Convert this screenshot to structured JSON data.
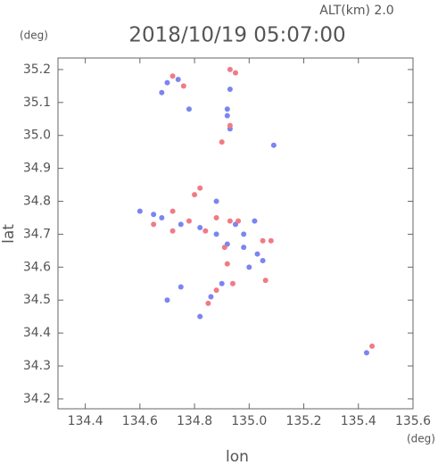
{
  "chart_data": {
    "type": "scatter",
    "title": "2018/10/19 05:07:00",
    "subtitle": "ALT(km) 2.0",
    "x_label": "lon",
    "y_label": "lat",
    "x_unit": "(deg)",
    "y_unit": "(deg)",
    "xlim": [
      134.3,
      135.6
    ],
    "ylim": [
      34.17,
      35.235
    ],
    "xticks": [
      134.4,
      134.6,
      134.8,
      {
        "value": 135,
        "label": "135.0"
      },
      135.2,
      135.4,
      135.6
    ],
    "yticks": [
      34.2,
      34.3,
      34.4,
      34.5,
      34.6,
      34.7,
      34.8,
      34.9,
      {
        "value": 35,
        "label": "35.0"
      },
      35.1,
      35.2
    ],
    "series": [
      {
        "color": "#7b85f0",
        "x": [
          134.7,
          134.74,
          134.68,
          134.78,
          134.93,
          134.92,
          134.92,
          134.93,
          135.09,
          134.88,
          134.6,
          134.65,
          134.68,
          134.75,
          134.82,
          134.88,
          134.95,
          134.98,
          135.03,
          135.05,
          135.0,
          134.92,
          134.9,
          134.86,
          134.7,
          134.75,
          134.82,
          135.43,
          135.02,
          134.98
        ],
        "values": [
          35.16,
          35.17,
          35.13,
          35.08,
          35.14,
          35.06,
          35.08,
          35.02,
          34.97,
          34.8,
          34.77,
          34.76,
          34.75,
          34.73,
          34.72,
          34.7,
          34.73,
          34.7,
          34.64,
          34.62,
          34.6,
          34.67,
          34.55,
          34.51,
          34.5,
          34.54,
          34.45,
          34.34,
          34.74,
          34.66
        ]
      },
      {
        "color": "#f07b85",
        "x": [
          134.72,
          134.76,
          134.93,
          134.95,
          134.93,
          134.9,
          134.82,
          134.8,
          134.72,
          134.78,
          134.84,
          134.88,
          134.93,
          134.96,
          134.91,
          135.05,
          135.08,
          134.94,
          134.88,
          134.85,
          135.06,
          134.92,
          134.72,
          135.45,
          134.65
        ],
        "values": [
          35.18,
          35.15,
          35.2,
          35.19,
          35.03,
          34.98,
          34.84,
          34.82,
          34.77,
          34.74,
          34.71,
          34.75,
          34.74,
          34.74,
          34.66,
          34.68,
          34.68,
          34.55,
          34.53,
          34.49,
          34.56,
          34.61,
          34.71,
          34.36,
          34.73
        ]
      }
    ]
  }
}
